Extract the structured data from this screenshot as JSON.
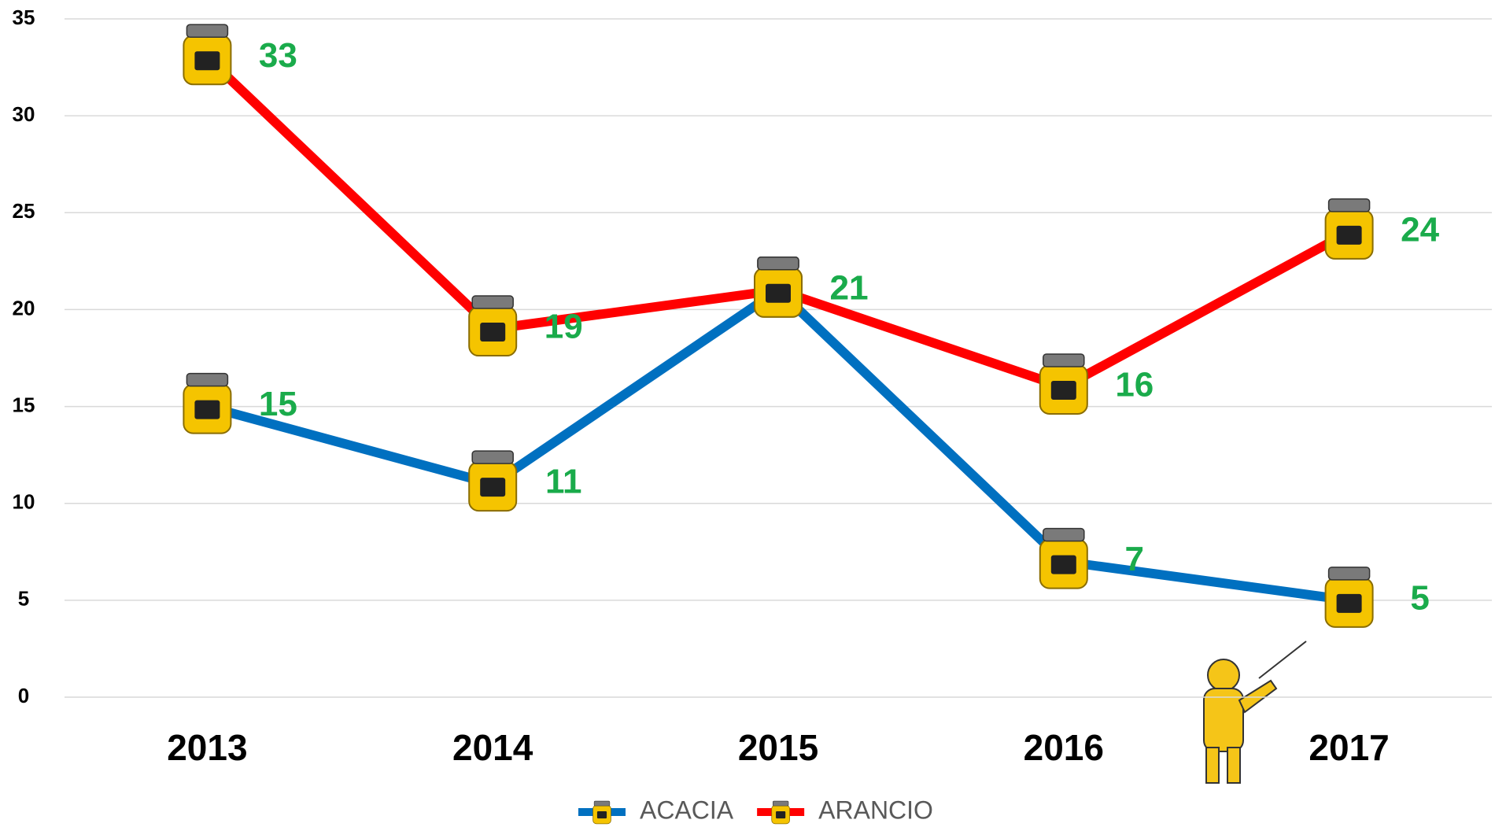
{
  "chart_data": {
    "type": "line",
    "categories": [
      "2013",
      "2014",
      "2015",
      "2016",
      "2017"
    ],
    "series": [
      {
        "name": "ACACIA",
        "color": "#0070c0",
        "values": [
          15,
          11,
          21,
          7,
          5
        ]
      },
      {
        "name": "ARANCIO",
        "color": "#ff0000",
        "values": [
          33,
          19,
          21,
          16,
          24
        ]
      }
    ],
    "ylim": [
      0,
      35
    ],
    "yticks": [
      0,
      5,
      10,
      15,
      20,
      25,
      30,
      35
    ],
    "grid": true,
    "label_color": "#1aab4b",
    "legend": "bottom"
  }
}
